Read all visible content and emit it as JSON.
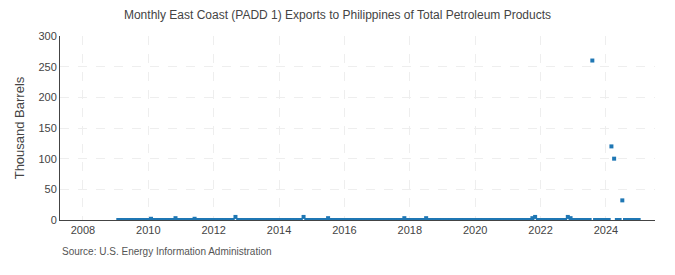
{
  "chart_data": {
    "type": "scatter",
    "title": "Monthly East Coast (PADD 1) Exports to Philippines of Total Petroleum Products",
    "ylabel": "Thousand Barrels",
    "annotations": [
      "Source: U.S. Energy Information Administration"
    ],
    "marker": "square",
    "grid": true,
    "xlim": [
      2007.3,
      2025.5
    ],
    "xticks": [
      2008,
      2010,
      2012,
      2014,
      2016,
      2018,
      2020,
      2022,
      2024
    ],
    "ylim": [
      0,
      300
    ],
    "yticks": [
      0,
      50,
      100,
      150,
      200,
      250,
      300
    ],
    "x": [
      2009.083,
      2009.167,
      2009.25,
      2009.333,
      2009.417,
      2009.5,
      2009.583,
      2009.667,
      2009.75,
      2009.833,
      2009.917,
      2010.0,
      2010.083,
      2010.167,
      2010.25,
      2010.333,
      2010.417,
      2010.5,
      2010.583,
      2010.667,
      2010.75,
      2010.833,
      2010.917,
      2011.0,
      2011.083,
      2011.167,
      2011.25,
      2011.333,
      2011.417,
      2011.5,
      2011.583,
      2011.667,
      2011.75,
      2011.833,
      2011.917,
      2012.0,
      2012.083,
      2012.167,
      2012.25,
      2012.333,
      2012.417,
      2012.5,
      2012.583,
      2012.667,
      2012.75,
      2012.833,
      2012.917,
      2013.0,
      2013.083,
      2013.167,
      2013.25,
      2013.333,
      2013.417,
      2013.5,
      2013.583,
      2013.667,
      2013.75,
      2013.833,
      2013.917,
      2014.0,
      2014.083,
      2014.167,
      2014.25,
      2014.333,
      2014.417,
      2014.5,
      2014.583,
      2014.667,
      2014.75,
      2014.833,
      2014.917,
      2015.0,
      2015.083,
      2015.167,
      2015.25,
      2015.333,
      2015.417,
      2015.5,
      2015.583,
      2015.667,
      2015.75,
      2015.833,
      2015.917,
      2016.0,
      2016.083,
      2016.167,
      2016.25,
      2016.333,
      2016.417,
      2016.5,
      2016.583,
      2016.667,
      2016.75,
      2016.833,
      2016.917,
      2017.0,
      2017.083,
      2017.167,
      2017.25,
      2017.333,
      2017.417,
      2017.5,
      2017.583,
      2017.667,
      2017.75,
      2017.833,
      2017.917,
      2018.0,
      2018.083,
      2018.167,
      2018.25,
      2018.333,
      2018.417,
      2018.5,
      2018.583,
      2018.667,
      2018.75,
      2018.833,
      2018.917,
      2019.0,
      2019.083,
      2019.167,
      2019.25,
      2019.333,
      2019.417,
      2019.5,
      2019.583,
      2019.667,
      2019.75,
      2019.833,
      2019.917,
      2020.0,
      2020.083,
      2020.167,
      2020.25,
      2020.333,
      2020.417,
      2020.5,
      2020.583,
      2020.667,
      2020.75,
      2020.833,
      2020.917,
      2021.0,
      2021.083,
      2021.167,
      2021.25,
      2021.333,
      2021.417,
      2021.5,
      2021.583,
      2021.667,
      2021.75,
      2021.833,
      2021.917,
      2022.0,
      2022.083,
      2022.167,
      2022.25,
      2022.333,
      2022.417,
      2022.5,
      2022.583,
      2022.667,
      2022.75,
      2022.833,
      2022.917,
      2023.0,
      2023.083,
      2023.167,
      2023.25,
      2023.333,
      2023.417,
      2023.5,
      2023.583,
      2023.667,
      2023.75,
      2023.833,
      2023.917,
      2024.0,
      2024.083,
      2024.167,
      2024.25,
      2024.333,
      2024.417,
      2024.5,
      2024.583,
      2024.667,
      2024.75,
      2024.833,
      2024.917,
      2025.0
    ],
    "values": [
      0,
      0,
      0,
      0,
      0,
      0,
      0,
      0,
      0,
      0,
      0,
      0,
      2,
      0,
      0,
      0,
      0,
      0,
      0,
      0,
      0,
      3,
      0,
      0,
      0,
      0,
      0,
      0,
      2,
      0,
      0,
      0,
      0,
      0,
      0,
      0,
      0,
      0,
      0,
      0,
      0,
      0,
      0,
      5,
      0,
      0,
      0,
      0,
      0,
      0,
      0,
      0,
      0,
      0,
      0,
      0,
      0,
      0,
      0,
      0,
      0,
      0,
      0,
      0,
      0,
      0,
      0,
      0,
      5,
      0,
      0,
      0,
      0,
      0,
      0,
      0,
      0,
      3,
      0,
      0,
      0,
      0,
      0,
      0,
      0,
      0,
      0,
      0,
      0,
      0,
      0,
      0,
      0,
      0,
      0,
      0,
      0,
      0,
      0,
      0,
      0,
      0,
      0,
      0,
      0,
      3,
      0,
      0,
      0,
      0,
      0,
      0,
      0,
      3,
      0,
      0,
      0,
      0,
      0,
      0,
      0,
      0,
      0,
      0,
      0,
      0,
      0,
      0,
      0,
      0,
      0,
      0,
      0,
      0,
      0,
      0,
      0,
      0,
      0,
      0,
      0,
      0,
      0,
      0,
      0,
      0,
      0,
      0,
      0,
      0,
      0,
      0,
      3,
      5,
      0,
      0,
      0,
      0,
      0,
      0,
      0,
      0,
      0,
      0,
      0,
      5,
      3,
      0,
      0,
      0,
      0,
      0,
      0,
      0,
      260,
      0,
      0,
      0,
      0,
      0,
      0,
      120,
      100,
      0,
      0,
      32,
      0,
      0,
      0,
      0,
      0,
      0
    ]
  }
}
